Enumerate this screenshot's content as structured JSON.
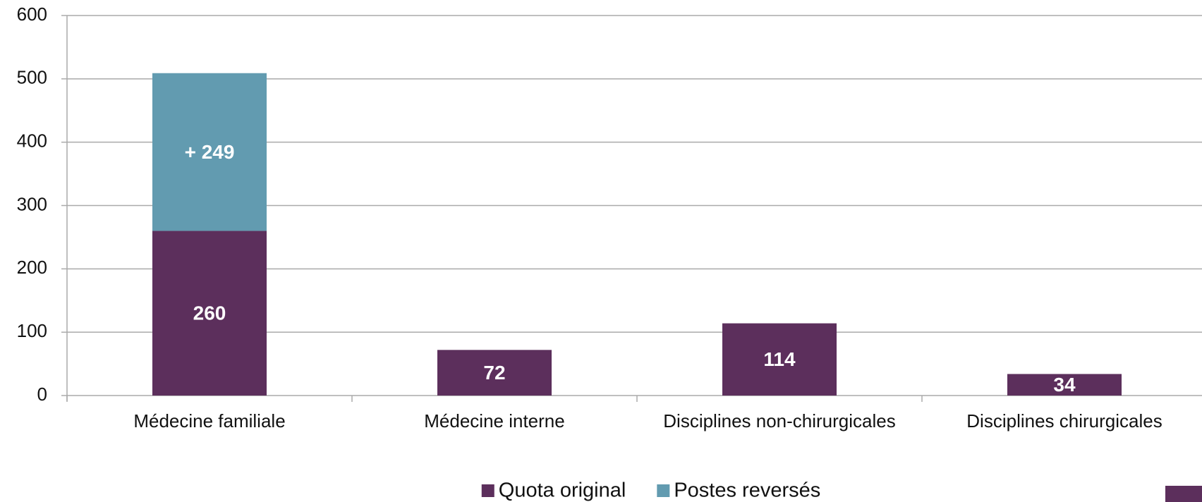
{
  "chart_data": {
    "type": "bar",
    "stacked": true,
    "categories": [
      "Médecine familiale",
      "Médecine interne",
      "Disciplines non-chirurgicales",
      "Disciplines chirurgicales"
    ],
    "series": [
      {
        "name": "Quota original",
        "color": "#5c2f5c",
        "values": [
          260,
          72,
          114,
          34
        ]
      },
      {
        "name": "Postes reversés",
        "color": "#629bb0",
        "values": [
          249,
          null,
          null,
          null
        ],
        "value_labels": [
          "+ 249",
          null,
          null,
          null
        ]
      }
    ],
    "ylim": [
      0,
      600
    ],
    "yticks": [
      0,
      100,
      200,
      300,
      400,
      500,
      600
    ],
    "grid": true,
    "legend": "bottom"
  }
}
